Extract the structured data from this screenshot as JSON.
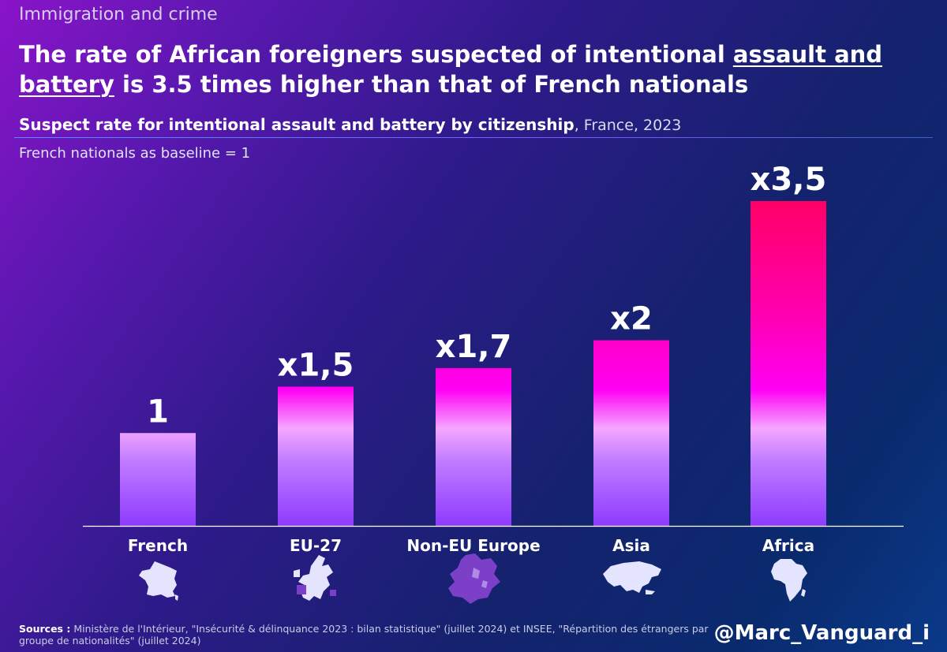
{
  "kicker": "Immigration and crime",
  "headline": {
    "part1": "The rate of African foreigners suspected of intentional ",
    "underlined1": "assault and",
    "underlined2": "battery",
    "part2": " is 3.5 times higher than that of French nationals"
  },
  "subtitle": {
    "bold": "Suspect rate for intentional assault and battery by citizenship",
    "plain": ", France, 2023"
  },
  "baseline_note": "French nationals as baseline = 1",
  "chart_data": {
    "type": "bar",
    "categories": [
      "French",
      "EU-27",
      "Non-EU Europe",
      "Asia",
      "Africa"
    ],
    "values": [
      1,
      1.5,
      1.7,
      2,
      3.5
    ],
    "value_labels": [
      "1",
      "x1,5",
      "x1,7",
      "x2",
      "x3,5"
    ],
    "ylim": [
      0,
      3.5
    ],
    "grid": false,
    "legend": "none",
    "icons": [
      "france-map-icon",
      "eu27-map-icon",
      "non-eu-europe-map-icon",
      "asia-map-icon",
      "africa-map-icon"
    ],
    "colors": {
      "bottom": "#8e3bff",
      "mid": "#ff00f5",
      "top": "#ff0066",
      "axis": "#ffffff"
    }
  },
  "sources": {
    "label": "Sources :",
    "text": " Ministère de l'Intérieur, \"Insécurité & délinquance 2023 : bilan statistique\" (juillet 2024) et INSEE, \"Répartition des étrangers par groupe de nationalités\" (juillet 2024)"
  },
  "handle": "@Marc_Vanguard_i"
}
